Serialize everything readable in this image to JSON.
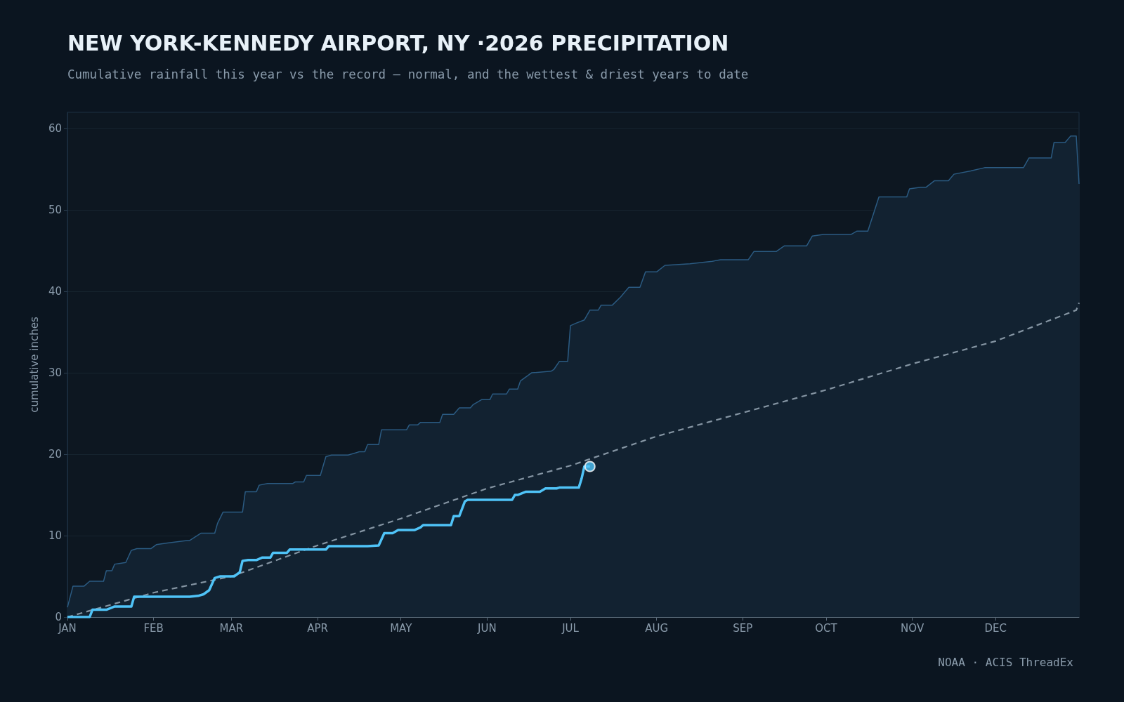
{
  "chart_data": {
    "type": "line",
    "title": "NEW YORK-KENNEDY AIRPORT, NY ·2026 PRECIPITATION",
    "subtitle": "Cumulative rainfall this year vs the record — normal, and the wettest & driest years to date",
    "ylabel": "cumulative inches",
    "annotations": [
      "NOAA · ACIS ThreadEx"
    ],
    "xlim": [
      "--01-01",
      "--12-31"
    ],
    "xticks": [
      {
        "value": "--01-01",
        "label": "JAN"
      },
      {
        "value": "--02-01",
        "label": "FEB"
      },
      {
        "value": "--03-01",
        "label": "MAR"
      },
      {
        "value": "--04-01",
        "label": "APR"
      },
      {
        "value": "--05-01",
        "label": "MAY"
      },
      {
        "value": "--06-01",
        "label": "JUN"
      },
      {
        "value": "--07-01",
        "label": "JUL"
      },
      {
        "value": "--08-01",
        "label": "AUG"
      },
      {
        "value": "--09-01",
        "label": "SEP"
      },
      {
        "value": "--10-01",
        "label": "OCT"
      },
      {
        "value": "--11-01",
        "label": "NOV"
      },
      {
        "value": "--12-01",
        "label": "DEC"
      }
    ],
    "ylim": [
      0,
      62
    ],
    "yticks": [
      0,
      10,
      20,
      30,
      40,
      50,
      60
    ],
    "grid": "y",
    "series": [
      {
        "type": "area",
        "color": "#2b5b82",
        "line_style": "solid",
        "marker": "none",
        "x": [
          "--01-01",
          "--01-03",
          "--01-07",
          "--01-09",
          "--01-14",
          "--01-15",
          "--01-17",
          "--01-18",
          "--01-20",
          "--01-22",
          "--01-24",
          "--01-26",
          "--01-31",
          "--02-02",
          "--02-06",
          "--02-13",
          "--02-14",
          "--02-18",
          "--02-23",
          "--02-24",
          "--02-26",
          "--03-05",
          "--03-06",
          "--03-10",
          "--03-11",
          "--03-14",
          "--03-23",
          "--03-24",
          "--03-27",
          "--03-28",
          "--04-02",
          "--04-04",
          "--04-06",
          "--04-12",
          "--04-16",
          "--04-18",
          "--04-19",
          "--04-23",
          "--04-24",
          "--05-03",
          "--05-04",
          "--05-07",
          "--05-08",
          "--05-15",
          "--05-16",
          "--05-20",
          "--05-22",
          "--05-26",
          "--05-27",
          "--05-30",
          "--06-02",
          "--06-03",
          "--06-08",
          "--06-09",
          "--06-12",
          "--06-13",
          "--06-17",
          "--06-24",
          "--06-25",
          "--06-27",
          "--06-30",
          "--07-01",
          "--07-03",
          "--07-06",
          "--07-08",
          "--07-11",
          "--07-12",
          "--07-16",
          "--07-19",
          "--07-22",
          "--07-26",
          "--07-28",
          "--08-01",
          "--08-04",
          "--08-13",
          "--08-21",
          "--08-24",
          "--09-03",
          "--09-05",
          "--09-13",
          "--09-16",
          "--09-24",
          "--09-26",
          "--09-30",
          "--10-10",
          "--10-12",
          "--10-16",
          "--10-18",
          "--10-20",
          "--10-30",
          "--10-31",
          "--11-04",
          "--11-06",
          "--11-09",
          "--11-14",
          "--11-16",
          "--11-22",
          "--11-27",
          "--12-11",
          "--12-13",
          "--12-21",
          "--12-22",
          "--12-26",
          "--12-28",
          "--12-30",
          "--12-31"
        ],
        "values": [
          1.2,
          3.8,
          3.8,
          4.4,
          4.4,
          5.7,
          5.7,
          6.5,
          6.6,
          6.7,
          8.2,
          8.4,
          8.4,
          8.9,
          9.1,
          9.4,
          9.4,
          10.3,
          10.3,
          11.5,
          12.9,
          12.9,
          15.4,
          15.4,
          16.2,
          16.4,
          16.4,
          16.6,
          16.6,
          17.4,
          17.4,
          19.7,
          19.9,
          19.9,
          20.3,
          20.3,
          21.2,
          21.2,
          23.0,
          23.0,
          23.6,
          23.6,
          23.9,
          23.9,
          24.9,
          24.9,
          25.7,
          25.7,
          26.1,
          26.7,
          26.7,
          27.4,
          27.4,
          28.0,
          28.0,
          29.0,
          30.0,
          30.2,
          30.4,
          31.4,
          31.4,
          35.8,
          36.1,
          36.5,
          37.7,
          37.7,
          38.3,
          38.3,
          39.3,
          40.5,
          40.5,
          42.4,
          42.4,
          43.2,
          43.4,
          43.7,
          43.9,
          43.9,
          44.9,
          44.9,
          45.6,
          45.6,
          46.8,
          47.0,
          47.0,
          47.4,
          47.4,
          49.5,
          51.6,
          51.6,
          52.6,
          52.8,
          52.8,
          53.6,
          53.6,
          54.4,
          54.8,
          55.2,
          55.2,
          56.4,
          56.4,
          58.3,
          58.3,
          59.1,
          59.1,
          53.2
        ]
      },
      {
        "color": "#8595a3",
        "line_style": "dashed",
        "marker": "none",
        "x": [
          "--01-01",
          "--02-01",
          "--03-01",
          "--04-01",
          "--05-01",
          "--06-01",
          "--07-01",
          "--08-01",
          "--09-01",
          "--10-01",
          "--11-01",
          "--12-01",
          "--12-30",
          "--12-31"
        ],
        "values": [
          0,
          3.0,
          5.0,
          8.8,
          12.1,
          15.8,
          18.6,
          22.2,
          25.1,
          27.9,
          31.1,
          33.9,
          37.7,
          38.6
        ]
      },
      {
        "color": "#4fc3f7",
        "line_style": "solid",
        "marker": "none",
        "x": [
          "--01-01",
          "--01-09",
          "--01-10",
          "--01-15",
          "--01-18",
          "--01-24",
          "--01-25",
          "--02-14",
          "--02-17",
          "--02-19",
          "--02-21",
          "--02-23",
          "--02-25",
          "--03-02",
          "--03-04",
          "--03-05",
          "--03-07",
          "--03-10",
          "--03-12",
          "--03-15",
          "--03-16",
          "--03-21",
          "--03-22",
          "--04-04",
          "--04-05",
          "--04-19",
          "--04-23",
          "--04-25",
          "--04-28",
          "--04-30",
          "--05-06",
          "--05-08",
          "--05-09",
          "--05-19",
          "--05-20",
          "--05-22",
          "--05-24",
          "--05-25",
          "--06-10",
          "--06-11",
          "--06-12",
          "--06-15",
          "--06-20",
          "--06-22",
          "--06-26",
          "--06-27",
          "--07-04",
          "--07-05",
          "--07-06",
          "--07-08"
        ],
        "values": [
          0,
          0,
          0.9,
          0.9,
          1.3,
          1.3,
          2.5,
          2.5,
          2.6,
          2.8,
          3.3,
          4.8,
          5.0,
          5.0,
          5.5,
          6.9,
          7.0,
          7.0,
          7.3,
          7.3,
          7.9,
          7.9,
          8.3,
          8.3,
          8.7,
          8.7,
          8.8,
          10.3,
          10.3,
          10.7,
          10.7,
          11.0,
          11.3,
          11.3,
          12.4,
          12.4,
          14.2,
          14.4,
          14.4,
          15.0,
          15.0,
          15.4,
          15.4,
          15.8,
          15.8,
          15.9,
          15.9,
          17.0,
          18.5,
          18.5
        ]
      },
      {
        "type": "scatter",
        "color": "#4fc3f7",
        "marker": "circle",
        "x": [
          "--07-08"
        ],
        "values": [
          18.5
        ]
      }
    ]
  }
}
